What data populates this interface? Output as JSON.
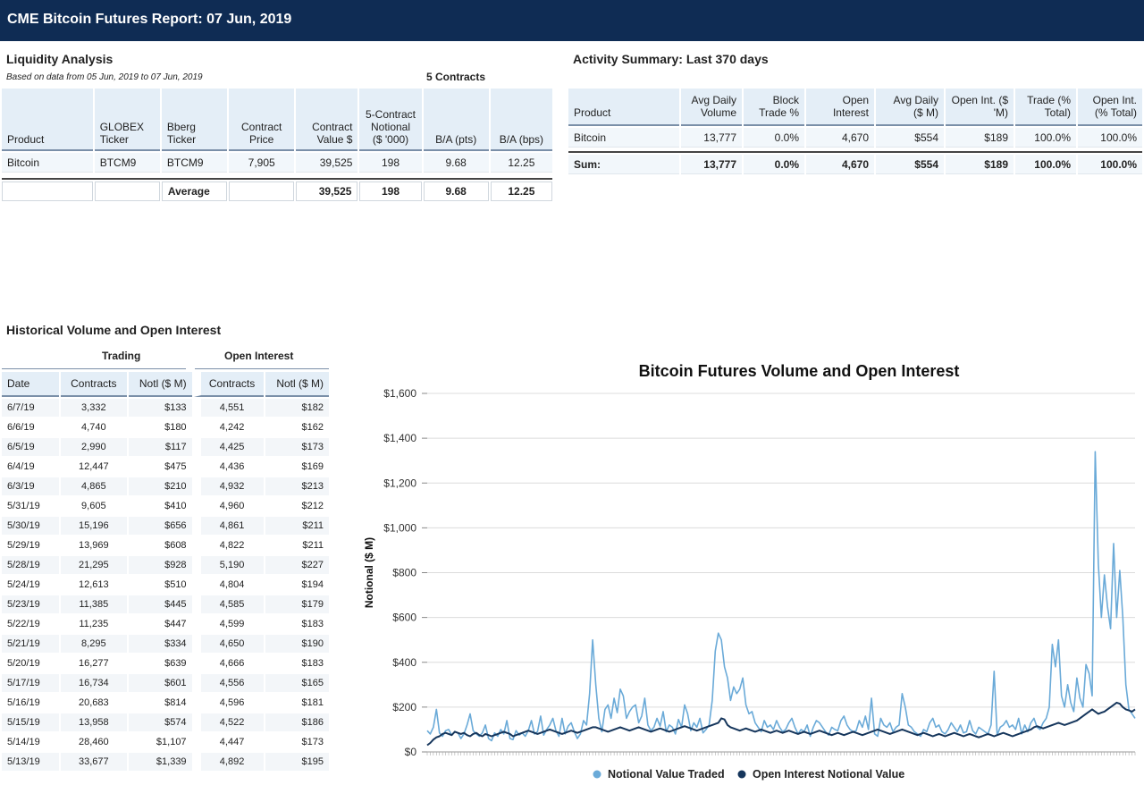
{
  "header": {
    "title": "CME Bitcoin Futures Report:  07 Jun, 2019"
  },
  "liquidity": {
    "title": "Liquidity Analysis",
    "subtitle": "Based on data from 05 Jun, 2019 to 07 Jun, 2019",
    "contracts_label": "5 Contracts",
    "headers": [
      "Product",
      "GLOBEX Ticker",
      "Bberg Ticker",
      "Contract Price",
      "Contract Value $",
      "5-Contract Notional ($ '000)",
      "B/A (pts)",
      "B/A (bps)"
    ],
    "row": [
      "Bitcoin",
      "BTCM9",
      "BTCM9",
      "7,905",
      "39,525",
      "198",
      "9.68",
      "12.25"
    ],
    "avg_row": [
      "",
      "",
      "Average",
      "",
      "39,525",
      "198",
      "9.68",
      "12.25"
    ]
  },
  "activity": {
    "title": "Activity Summary: Last 370 days",
    "headers": [
      "Product",
      "Avg Daily Volume",
      "Block Trade %",
      "Open Interest",
      "Avg Daily ($ M)",
      "Open Int. ($ 'M)",
      "Trade (% Total)",
      "Open Int. (% Total)"
    ],
    "row": [
      "Bitcoin",
      "13,777",
      "0.0%",
      "4,670",
      "$554",
      "$189",
      "100.0%",
      "100.0%"
    ],
    "sum_row": [
      "Sum:",
      "13,777",
      "0.0%",
      "4,670",
      "$554",
      "$189",
      "100.0%",
      "100.0%"
    ]
  },
  "historical": {
    "title": "Historical Volume and Open Interest",
    "group_trading": "Trading",
    "group_oi": "Open Interest",
    "headers": [
      "Date",
      "Contracts",
      "Notl ($ M)",
      "Contracts",
      "Notl ($ M)"
    ],
    "rows": [
      [
        "6/7/19",
        "3,332",
        "$133",
        "4,551",
        "$182"
      ],
      [
        "6/6/19",
        "4,740",
        "$180",
        "4,242",
        "$162"
      ],
      [
        "6/5/19",
        "2,990",
        "$117",
        "4,425",
        "$173"
      ],
      [
        "6/4/19",
        "12,447",
        "$475",
        "4,436",
        "$169"
      ],
      [
        "6/3/19",
        "4,865",
        "$210",
        "4,932",
        "$213"
      ],
      [
        "5/31/19",
        "9,605",
        "$410",
        "4,960",
        "$212"
      ],
      [
        "5/30/19",
        "15,196",
        "$656",
        "4,861",
        "$211"
      ],
      [
        "5/29/19",
        "13,969",
        "$608",
        "4,822",
        "$211"
      ],
      [
        "5/28/19",
        "21,295",
        "$928",
        "5,190",
        "$227"
      ],
      [
        "5/24/19",
        "12,613",
        "$510",
        "4,804",
        "$194"
      ],
      [
        "5/23/19",
        "11,385",
        "$445",
        "4,585",
        "$179"
      ],
      [
        "5/22/19",
        "11,235",
        "$447",
        "4,599",
        "$183"
      ],
      [
        "5/21/19",
        "8,295",
        "$334",
        "4,650",
        "$190"
      ],
      [
        "5/20/19",
        "16,277",
        "$639",
        "4,666",
        "$183"
      ],
      [
        "5/17/19",
        "16,734",
        "$601",
        "4,556",
        "$165"
      ],
      [
        "5/16/19",
        "20,683",
        "$814",
        "4,596",
        "$181"
      ],
      [
        "5/15/19",
        "13,958",
        "$574",
        "4,522",
        "$186"
      ],
      [
        "5/14/19",
        "28,460",
        "$1,107",
        "4,447",
        "$173"
      ],
      [
        "5/13/19",
        "33,677",
        "$1,339",
        "4,892",
        "$195"
      ]
    ]
  },
  "chart_data": {
    "type": "line",
    "title": "Bitcoin Futures Volume and Open Interest",
    "ylabel": "Notional ($ M)",
    "xlabel": "",
    "ylim": [
      0,
      1600
    ],
    "yticks": [
      0,
      200,
      400,
      600,
      800,
      1000,
      1200,
      1400,
      1600
    ],
    "ytick_labels": [
      "$0",
      "$200",
      "$400",
      "$600",
      "$800",
      "$1,000",
      "$1,200",
      "$1,400",
      "$1,600"
    ],
    "grid": true,
    "legend_position": "bottom",
    "series": [
      {
        "name": "Notional Value Traded",
        "color": "#6aaad8",
        "values": [
          95,
          80,
          110,
          190,
          85,
          70,
          95,
          100,
          75,
          90,
          85,
          60,
          80,
          120,
          170,
          95,
          80,
          70,
          85,
          120,
          60,
          50,
          85,
          70,
          100,
          80,
          140,
          60,
          55,
          95,
          75,
          85,
          70,
          95,
          140,
          80,
          90,
          160,
          75,
          100,
          120,
          150,
          95,
          70,
          150,
          80,
          115,
          130,
          90,
          60,
          80,
          140,
          120,
          260,
          500,
          300,
          150,
          90,
          190,
          210,
          150,
          240,
          175,
          280,
          250,
          150,
          180,
          200,
          210,
          130,
          160,
          240,
          120,
          95,
          110,
          150,
          115,
          180,
          90,
          120,
          110,
          80,
          145,
          110,
          210,
          170,
          95,
          130,
          110,
          150,
          85,
          100,
          120,
          230,
          450,
          530,
          500,
          380,
          330,
          230,
          290,
          260,
          280,
          330,
          210,
          170,
          180,
          130,
          110,
          90,
          140,
          110,
          120,
          100,
          140,
          110,
          90,
          100,
          130,
          150,
          110,
          80,
          100,
          90,
          120,
          70,
          110,
          140,
          130,
          110,
          90,
          75,
          110,
          100,
          95,
          140,
          160,
          120,
          100,
          90,
          95,
          140,
          110,
          160,
          100,
          240,
          80,
          70,
          150,
          120,
          110,
          130,
          90,
          110,
          120,
          260,
          200,
          120,
          110,
          90,
          80,
          70,
          100,
          90,
          130,
          150,
          110,
          120,
          90,
          80,
          100,
          130,
          110,
          90,
          120,
          85,
          90,
          140,
          95,
          80,
          110,
          100,
          90,
          80,
          120,
          360,
          75,
          110,
          120,
          140,
          110,
          120,
          100,
          150,
          80,
          120,
          90,
          130,
          150,
          110,
          100,
          130,
          150,
          200,
          480,
          380,
          500,
          250,
          200,
          300,
          220,
          180,
          330,
          240,
          200,
          390,
          350,
          250,
          1340,
          840,
          600,
          790,
          650,
          550,
          930,
          600,
          810,
          600,
          300,
          190,
          170,
          150
        ],
        "display_range": [
          0,
          1600
        ]
      },
      {
        "name": "Open Interest Notional Value",
        "color": "#16365c",
        "values": [
          30,
          40,
          55,
          65,
          70,
          80,
          85,
          80,
          75,
          90,
          85,
          80,
          85,
          75,
          70,
          80,
          85,
          75,
          70,
          80,
          75,
          70,
          75,
          80,
          85,
          90,
          85,
          80,
          70,
          75,
          80,
          85,
          90,
          95,
          90,
          85,
          80,
          85,
          90,
          95,
          100,
          95,
          90,
          85,
          80,
          85,
          90,
          95,
          90,
          85,
          90,
          95,
          100,
          105,
          110,
          110,
          105,
          100,
          95,
          90,
          95,
          100,
          105,
          110,
          105,
          100,
          95,
          100,
          105,
          110,
          105,
          100,
          95,
          90,
          95,
          100,
          105,
          100,
          95,
          90,
          95,
          100,
          105,
          110,
          115,
          110,
          105,
          100,
          95,
          100,
          105,
          110,
          115,
          120,
          125,
          130,
          150,
          145,
          120,
          110,
          105,
          100,
          95,
          100,
          105,
          100,
          95,
          90,
          95,
          100,
          95,
          90,
          85,
          90,
          95,
          90,
          85,
          90,
          95,
          90,
          85,
          80,
          85,
          90,
          85,
          80,
          85,
          90,
          95,
          90,
          85,
          80,
          75,
          80,
          85,
          80,
          75,
          80,
          85,
          90,
          85,
          80,
          75,
          80,
          85,
          90,
          95,
          100,
          95,
          90,
          85,
          80,
          85,
          90,
          95,
          100,
          95,
          90,
          85,
          80,
          75,
          80,
          85,
          80,
          75,
          70,
          75,
          80,
          75,
          70,
          75,
          80,
          85,
          80,
          75,
          70,
          75,
          80,
          75,
          70,
          65,
          70,
          75,
          80,
          75,
          70,
          75,
          80,
          85,
          80,
          75,
          70,
          75,
          80,
          85,
          90,
          95,
          100,
          110,
          115,
          110,
          105,
          110,
          115,
          120,
          125,
          130,
          125,
          120,
          125,
          130,
          135,
          140,
          150,
          160,
          170,
          180,
          190,
          180,
          170,
          175,
          180,
          190,
          200,
          210,
          220,
          215,
          200,
          190,
          185,
          180,
          190
        ]
      }
    ]
  }
}
